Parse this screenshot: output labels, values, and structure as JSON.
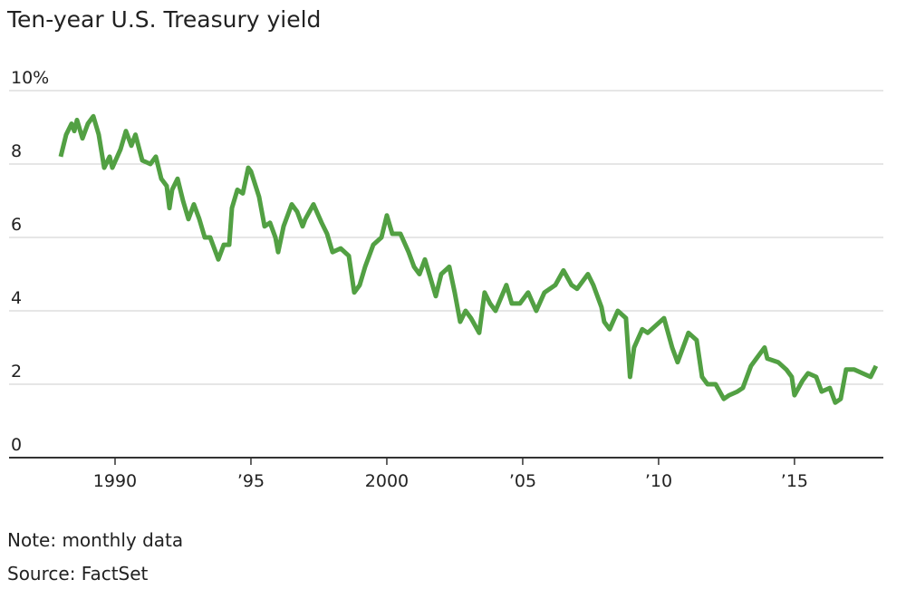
{
  "chart_data": {
    "type": "line",
    "title": "Ten-year U.S. Treasury yield",
    "note": "Note: monthly data",
    "source": "Source: FactSet",
    "color": "#52a043",
    "xlim": [
      1986.1,
      2018.27
    ],
    "xticks": [
      {
        "value": 1990,
        "label": "1990"
      },
      {
        "value": 1995,
        "label": "’95"
      },
      {
        "value": 2000,
        "label": "2000"
      },
      {
        "value": 2005,
        "label": "’05"
      },
      {
        "value": 2010,
        "label": "’10"
      },
      {
        "value": 2015,
        "label": "’15"
      }
    ],
    "ylim": [
      0,
      10
    ],
    "yticks": [
      0,
      2,
      4,
      6,
      8,
      {
        "value": 10,
        "label": "10%"
      }
    ],
    "grid": true,
    "x": [
      1988.0,
      1988.2,
      1988.4,
      1988.5,
      1988.6,
      1988.8,
      1989.0,
      1989.2,
      1989.4,
      1989.6,
      1989.8,
      1989.9,
      1990.2,
      1990.4,
      1990.6,
      1990.75,
      1991.0,
      1991.3,
      1991.5,
      1991.7,
      1991.9,
      1992.0,
      1992.1,
      1992.3,
      1992.5,
      1992.7,
      1992.9,
      1993.1,
      1993.3,
      1993.5,
      1993.8,
      1994.0,
      1994.2,
      1994.3,
      1994.5,
      1994.7,
      1994.9,
      1995.0,
      1995.3,
      1995.5,
      1995.7,
      1995.9,
      1996.0,
      1996.2,
      1996.5,
      1996.7,
      1996.9,
      1997.0,
      1997.3,
      1997.6,
      1997.8,
      1998.0,
      1998.3,
      1998.6,
      1998.8,
      1999.0,
      1999.2,
      1999.5,
      1999.8,
      2000.0,
      2000.2,
      2000.5,
      2000.8,
      2001.0,
      2001.2,
      2001.4,
      2001.6,
      2001.8,
      2002.0,
      2002.3,
      2002.5,
      2002.7,
      2002.9,
      2003.1,
      2003.4,
      2003.6,
      2003.8,
      2004.0,
      2004.4,
      2004.6,
      2004.9,
      2005.2,
      2005.5,
      2005.8,
      2006.2,
      2006.5,
      2006.8,
      2007.0,
      2007.4,
      2007.6,
      2007.9,
      2008.0,
      2008.2,
      2008.5,
      2008.8,
      2008.95,
      2009.1,
      2009.4,
      2009.6,
      2009.9,
      2010.2,
      2010.5,
      2010.7,
      2010.9,
      2011.1,
      2011.4,
      2011.6,
      2011.8,
      2012.1,
      2012.4,
      2012.6,
      2012.9,
      2013.1,
      2013.4,
      2013.6,
      2013.9,
      2014.0,
      2014.4,
      2014.7,
      2014.9,
      2015.0,
      2015.3,
      2015.5,
      2015.8,
      2016.0,
      2016.3,
      2016.5,
      2016.7,
      2016.9,
      2017.2,
      2017.5,
      2017.8,
      2018.0
    ],
    "values": [
      8.2,
      8.8,
      9.1,
      8.9,
      9.2,
      8.7,
      9.1,
      9.3,
      8.8,
      7.9,
      8.2,
      7.9,
      8.4,
      8.9,
      8.5,
      8.8,
      8.1,
      8.0,
      8.2,
      7.6,
      7.4,
      6.8,
      7.3,
      7.6,
      7.0,
      6.5,
      6.9,
      6.5,
      6.0,
      6.0,
      5.4,
      5.8,
      5.8,
      6.8,
      7.3,
      7.2,
      7.9,
      7.8,
      7.1,
      6.3,
      6.4,
      6.0,
      5.6,
      6.3,
      6.9,
      6.7,
      6.3,
      6.5,
      6.9,
      6.4,
      6.1,
      5.6,
      5.7,
      5.5,
      4.5,
      4.7,
      5.2,
      5.8,
      6.0,
      6.6,
      6.1,
      6.1,
      5.6,
      5.2,
      5.0,
      5.4,
      4.9,
      4.4,
      5.0,
      5.2,
      4.5,
      3.7,
      4.0,
      3.8,
      3.4,
      4.5,
      4.2,
      4.0,
      4.7,
      4.2,
      4.2,
      4.5,
      4.0,
      4.5,
      4.7,
      5.1,
      4.7,
      4.6,
      5.0,
      4.7,
      4.1,
      3.7,
      3.5,
      4.0,
      3.8,
      2.2,
      3.0,
      3.5,
      3.4,
      3.6,
      3.8,
      3.0,
      2.6,
      3.0,
      3.4,
      3.2,
      2.2,
      2.0,
      2.0,
      1.6,
      1.7,
      1.8,
      1.9,
      2.5,
      2.7,
      3.0,
      2.7,
      2.6,
      2.4,
      2.2,
      1.7,
      2.1,
      2.3,
      2.2,
      1.8,
      1.9,
      1.5,
      1.6,
      2.4,
      2.4,
      2.3,
      2.2,
      2.5
    ]
  }
}
